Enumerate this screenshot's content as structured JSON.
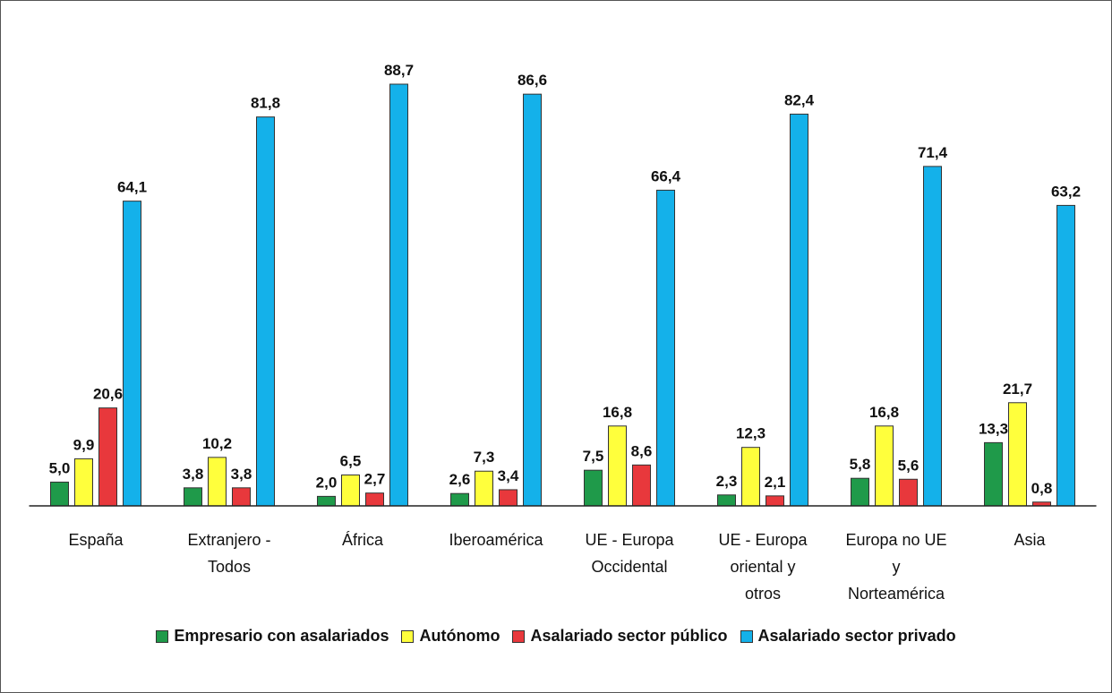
{
  "chart_data": {
    "type": "bar",
    "categories": [
      "España",
      "Extranjero -\nTodos",
      "África",
      "Iberoamérica",
      "UE - Europa\nOccidental",
      "UE - Europa\noriental y\notros",
      "Europa no UE\ny\nNorteamérica",
      "Asia"
    ],
    "series": [
      {
        "name": "Empresario con asalariados",
        "color": "#1f9a4a",
        "values": [
          5.0,
          3.8,
          2.0,
          2.6,
          7.5,
          2.3,
          5.8,
          13.3
        ],
        "value_labels": [
          "5,0",
          "3,8",
          "2,0",
          "2,6",
          "7,5",
          "2,3",
          "5,8",
          "13,3"
        ]
      },
      {
        "name": "Autónomo",
        "color": "#ffff3c",
        "values": [
          9.9,
          10.2,
          6.5,
          7.3,
          16.8,
          12.3,
          16.8,
          21.7
        ],
        "value_labels": [
          "9,9",
          "10,2",
          "6,5",
          "7,3",
          "16,8",
          "12,3",
          "16,8",
          "21,7"
        ]
      },
      {
        "name": "Asalariado sector público",
        "color": "#e8383c",
        "values": [
          20.6,
          3.8,
          2.7,
          3.4,
          8.6,
          2.1,
          5.6,
          0.8
        ],
        "value_labels": [
          "20,6",
          "3,8",
          "2,7",
          "3,4",
          "8,6",
          "2,1",
          "5,6",
          "0,8"
        ]
      },
      {
        "name": "Asalariado sector privado",
        "color": "#14b1ea",
        "values": [
          64.1,
          81.8,
          88.7,
          86.6,
          66.4,
          82.4,
          71.4,
          63.2
        ],
        "value_labels": [
          "64,1",
          "81,8",
          "88,7",
          "86,6",
          "66,4",
          "82,4",
          "71,4",
          "63,2"
        ]
      }
    ],
    "ylim": [
      0,
      100
    ],
    "legend": "bottom"
  }
}
